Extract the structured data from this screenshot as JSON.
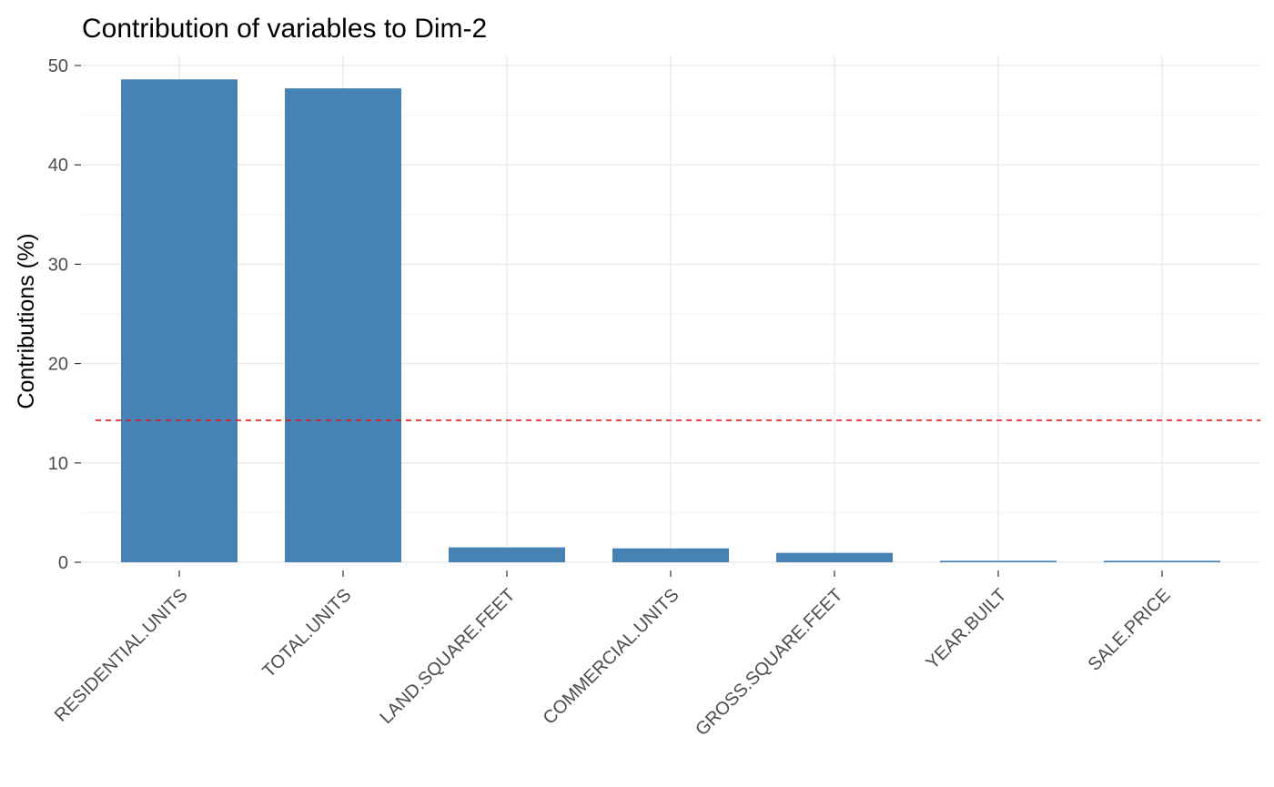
{
  "chart_data": {
    "type": "bar",
    "title": "Contribution of variables to Dim-2",
    "xlabel": "",
    "ylabel": "Contributions (%)",
    "categories": [
      "RESIDENTIAL.UNITS",
      "TOTAL.UNITS",
      "LAND.SQUARE.FEET",
      "COMMERCIAL.UNITS",
      "GROSS.SQUARE.FEET",
      "YEAR.BUILT",
      "SALE.PRICE"
    ],
    "values": [
      48.6,
      47.7,
      1.5,
      1.4,
      0.95,
      0.15,
      0.15
    ],
    "reference_line": 14.29,
    "ylim": [
      0,
      50
    ],
    "yticks": [
      0,
      10,
      20,
      30,
      40,
      50
    ],
    "grid": true,
    "bar_color": "#4682b4",
    "reference_line_color": "#e41a1c"
  }
}
